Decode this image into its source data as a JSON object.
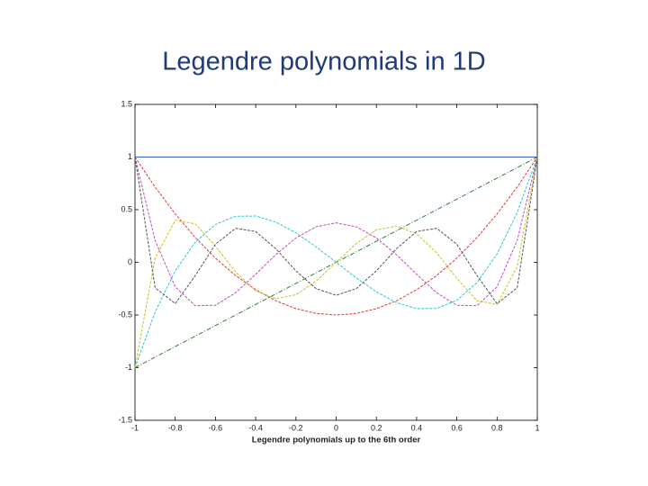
{
  "chart_data": {
    "type": "line",
    "title": "Legendre polynomials in 1D",
    "x_label": "Legendre polynomials up to the 6th order",
    "x": [
      -1,
      -0.9,
      -0.8,
      -0.7,
      -0.6,
      -0.5,
      -0.4,
      -0.3,
      -0.2,
      -0.1,
      0,
      0.1,
      0.2,
      0.3,
      0.4,
      0.5,
      0.6,
      0.7,
      0.8,
      0.9,
      1
    ],
    "series": [
      {
        "color": "#3b5fd0",
        "values": [
          1,
          1,
          1,
          1,
          1,
          1,
          1,
          1,
          1,
          1,
          1,
          1,
          1,
          1,
          1,
          1,
          1,
          1,
          1,
          1,
          1
        ]
      },
      {
        "color": "#2e7d32",
        "values": [
          -1,
          -0.9,
          -0.8,
          -0.7,
          -0.6,
          -0.5,
          -0.4,
          -0.3,
          -0.2,
          -0.1,
          0,
          0.1,
          0.2,
          0.3,
          0.4,
          0.5,
          0.6,
          0.7,
          0.8,
          0.9,
          1
        ]
      },
      {
        "color": "#e53935",
        "values": [
          1,
          0.715,
          0.46,
          0.235,
          0.04,
          -0.125,
          -0.26,
          -0.365,
          -0.44,
          -0.485,
          -0.5,
          -0.485,
          -0.44,
          -0.365,
          -0.26,
          -0.125,
          0.04,
          0.235,
          0.46,
          0.715,
          1
        ]
      },
      {
        "color": "#26c6da",
        "values": [
          -1,
          -0.4725,
          -0.08,
          0.1925,
          0.36,
          0.4375,
          0.44,
          0.3825,
          0.28,
          0.1475,
          0,
          -0.1475,
          -0.28,
          -0.3825,
          -0.44,
          -0.4375,
          -0.36,
          -0.1925,
          0.08,
          0.4725,
          1
        ]
      },
      {
        "color": "#c447c4",
        "values": [
          1,
          0.208,
          -0.233,
          -0.412,
          -0.408,
          -0.289,
          -0.113,
          0.073,
          0.232,
          0.338,
          0.375,
          0.338,
          0.232,
          0.073,
          -0.113,
          -0.289,
          -0.408,
          -0.412,
          -0.233,
          0.208,
          1
        ]
      },
      {
        "color": "#c8c22a",
        "values": [
          -1,
          0.041,
          0.4,
          0.365,
          0.153,
          -0.09,
          -0.271,
          -0.345,
          -0.308,
          -0.179,
          0,
          0.179,
          0.308,
          0.345,
          0.271,
          0.09,
          -0.153,
          -0.365,
          -0.4,
          -0.041,
          1
        ]
      },
      {
        "color": "#555555",
        "values": [
          1,
          -0.241,
          -0.392,
          -0.125,
          0.172,
          0.323,
          0.293,
          0.129,
          -0.081,
          -0.249,
          -0.313,
          -0.249,
          -0.081,
          0.129,
          0.293,
          0.323,
          0.172,
          -0.125,
          -0.392,
          -0.241,
          1
        ]
      }
    ],
    "xlim": [
      -1,
      1
    ],
    "xticks": [
      -1,
      -0.8,
      -0.6,
      -0.4,
      -0.2,
      0,
      0.2,
      0.4,
      0.6,
      0.8,
      1
    ],
    "ylim": [
      -1.5,
      1.5
    ],
    "yticks": [
      -1.5,
      -1,
      -0.5,
      0,
      0.5,
      1,
      1.5
    ]
  }
}
